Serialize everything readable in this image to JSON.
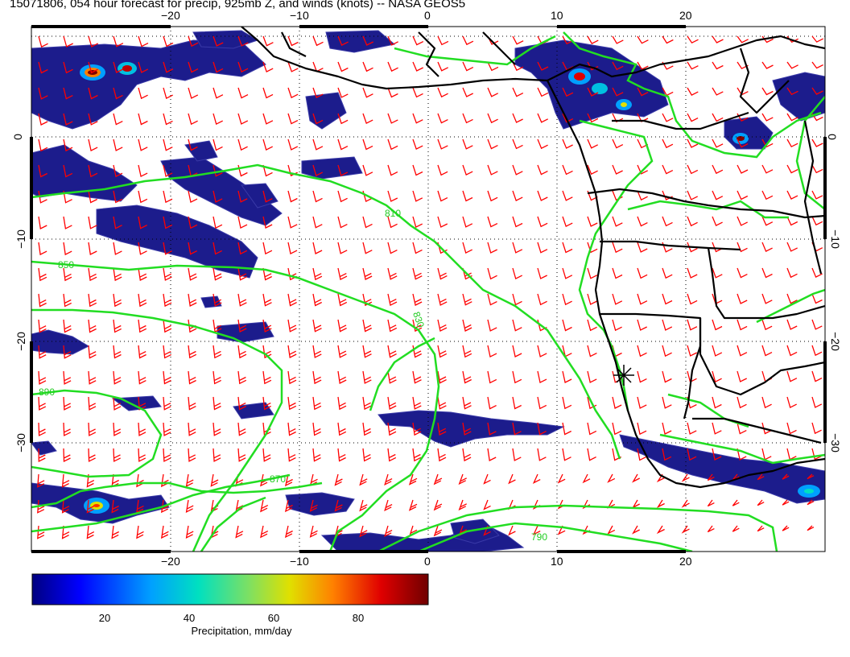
{
  "title": "15071806, 054 hour forecast for precip, 925mb Z, and winds (knots) -- NASA GEOS5",
  "map": {
    "lon_ticks": [
      "−20",
      "−10",
      "0",
      "10",
      "20"
    ],
    "lat_ticks": [
      "0",
      "−10",
      "−20",
      "−30"
    ],
    "contour_labels": [
      "810",
      "830",
      "850",
      "870",
      "890",
      "790"
    ],
    "colors": {
      "precip_dark": "#1a1a8c",
      "contour": "#33dd33",
      "barbs": "#ff0000",
      "coast": "#000000"
    },
    "marker_icon": "asterisk-marker"
  },
  "colorbar": {
    "ticks": [
      "20",
      "40",
      "60",
      "80"
    ],
    "caption": "Precipitation, mm/day",
    "colors": [
      "#000080",
      "#0000ff",
      "#00a0ff",
      "#00e0c0",
      "#80e060",
      "#e0e000",
      "#ff8000",
      "#e00000",
      "#800000"
    ]
  }
}
